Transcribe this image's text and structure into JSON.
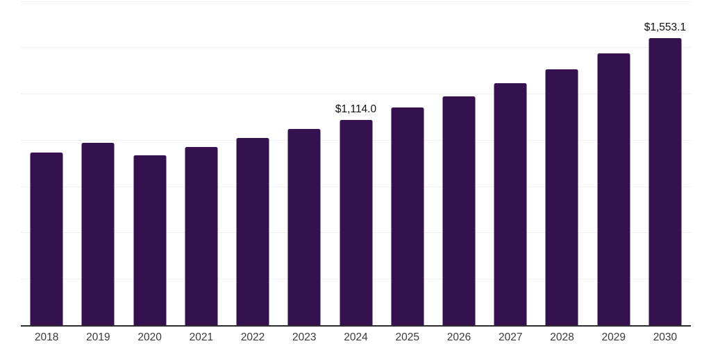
{
  "chart_data": {
    "type": "bar",
    "title": "",
    "xlabel": "",
    "ylabel": "",
    "categories": [
      "2018",
      "2019",
      "2020",
      "2021",
      "2022",
      "2023",
      "2024",
      "2025",
      "2026",
      "2027",
      "2028",
      "2029",
      "2030"
    ],
    "values": [
      938,
      987,
      920,
      965,
      1013,
      1062,
      1114.0,
      1178,
      1238,
      1309,
      1387,
      1473,
      1553.1
    ],
    "data_labels": {
      "2024": "$1,114.0",
      "2030": "$1,553.1"
    },
    "ylim": [
      0,
      1760
    ],
    "gridline_values": [
      250,
      500,
      750,
      1000,
      1250,
      1500,
      1750
    ],
    "grid": "horizontal",
    "legend": "none",
    "colors": {
      "bar": "#35124f",
      "axis_line": "#2d2d2d",
      "gridline": "#f0f0f0",
      "tick_label": "#3a3a3a",
      "value_label": "#111111",
      "background": "#ffffff"
    }
  }
}
